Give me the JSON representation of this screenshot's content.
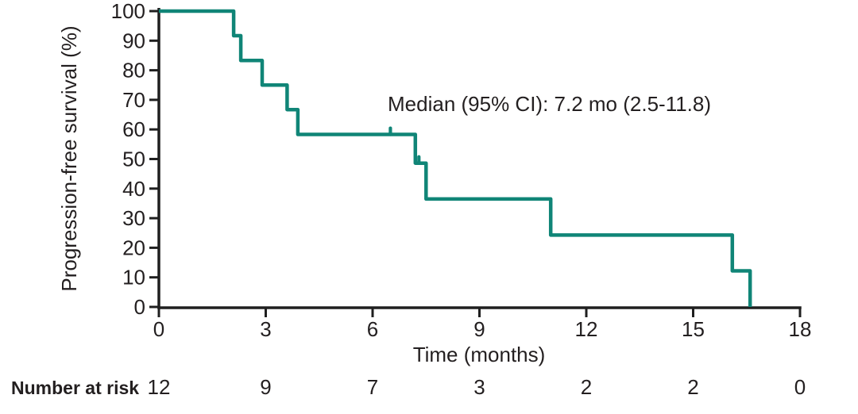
{
  "figure": {
    "background": "#ffffff",
    "axis_color": "#1f1f1f",
    "text_color": "#231f20",
    "curve_color": "#108577"
  },
  "chart_data": {
    "type": "line",
    "variant": "kaplan_meier_step",
    "title": "",
    "xlabel": "Time (months)",
    "ylabel": "Progression-free survival (%)",
    "xlim": [
      0,
      18
    ],
    "ylim": [
      0,
      100
    ],
    "xticks": [
      0,
      3,
      6,
      9,
      12,
      15,
      18
    ],
    "yticks": [
      0,
      10,
      20,
      30,
      40,
      50,
      60,
      70,
      80,
      90,
      100
    ],
    "grid": false,
    "legend": "none",
    "annotation": "Median (95% CI): 7.2 mo (2.5-11.8)",
    "series": [
      {
        "name": "Progression-free survival",
        "color": "#108577",
        "steps": [
          [
            0,
            100
          ],
          [
            2.1,
            100
          ],
          [
            2.1,
            91.7
          ],
          [
            2.3,
            91.7
          ],
          [
            2.3,
            83.3
          ],
          [
            2.9,
            83.3
          ],
          [
            2.9,
            75
          ],
          [
            3.6,
            75
          ],
          [
            3.6,
            66.7
          ],
          [
            3.9,
            66.7
          ],
          [
            3.9,
            58.3
          ],
          [
            7.2,
            58.3
          ],
          [
            7.2,
            48.6
          ],
          [
            7.5,
            48.6
          ],
          [
            7.5,
            36.5
          ],
          [
            11,
            36.5
          ],
          [
            11,
            24.3
          ],
          [
            16.1,
            24.3
          ],
          [
            16.1,
            12.2
          ],
          [
            16.6,
            12.2
          ],
          [
            16.6,
            0
          ]
        ],
        "censor_marks": [
          [
            6.5,
            58.3
          ],
          [
            7.3,
            48.6
          ]
        ]
      }
    ],
    "number_at_risk": {
      "label": "Number at risk",
      "times": [
        0,
        3,
        6,
        9,
        12,
        15,
        18
      ],
      "counts": [
        12,
        9,
        7,
        3,
        2,
        2,
        0
      ]
    }
  }
}
